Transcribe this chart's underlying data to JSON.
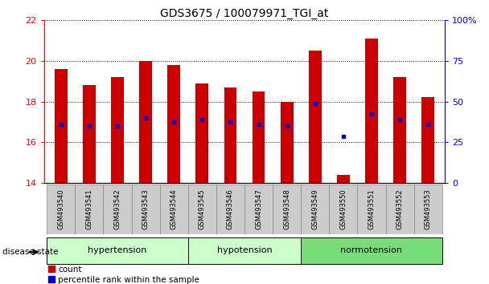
{
  "title": "GDS3675 / 100079971_TGI_at",
  "samples": [
    "GSM493540",
    "GSM493541",
    "GSM493542",
    "GSM493543",
    "GSM493544",
    "GSM493545",
    "GSM493546",
    "GSM493547",
    "GSM493548",
    "GSM493549",
    "GSM493550",
    "GSM493551",
    "GSM493552",
    "GSM493553"
  ],
  "bar_values": [
    19.6,
    18.8,
    19.2,
    20.0,
    19.8,
    18.9,
    18.7,
    18.5,
    18.0,
    20.5,
    14.4,
    21.1,
    19.2,
    18.2
  ],
  "blue_marker_values": [
    16.9,
    16.8,
    16.8,
    17.2,
    17.0,
    17.1,
    17.0,
    16.9,
    16.8,
    17.9,
    16.3,
    17.4,
    17.1,
    16.9
  ],
  "bar_color": "#cc0000",
  "blue_color": "#0000cc",
  "ylim_left": [
    14,
    22
  ],
  "ylim_right": [
    0,
    100
  ],
  "yticks_left": [
    14,
    16,
    18,
    20,
    22
  ],
  "yticks_right": [
    0,
    25,
    50,
    75,
    100
  ],
  "groups": [
    {
      "label": "hypertension",
      "start": 0,
      "end": 5
    },
    {
      "label": "hypotension",
      "start": 5,
      "end": 9
    },
    {
      "label": "normotension",
      "start": 9,
      "end": 14
    }
  ],
  "group_colors": {
    "hypertension": "#ccffcc",
    "hypotension": "#ccffcc",
    "normotension": "#77dd77"
  },
  "disease_state_label": "disease state",
  "legend_count_label": "count",
  "legend_percentile_label": "percentile rank within the sample",
  "bar_bottom": 14,
  "label_bg_color": "#cccccc",
  "fig_bg_color": "#ffffff"
}
